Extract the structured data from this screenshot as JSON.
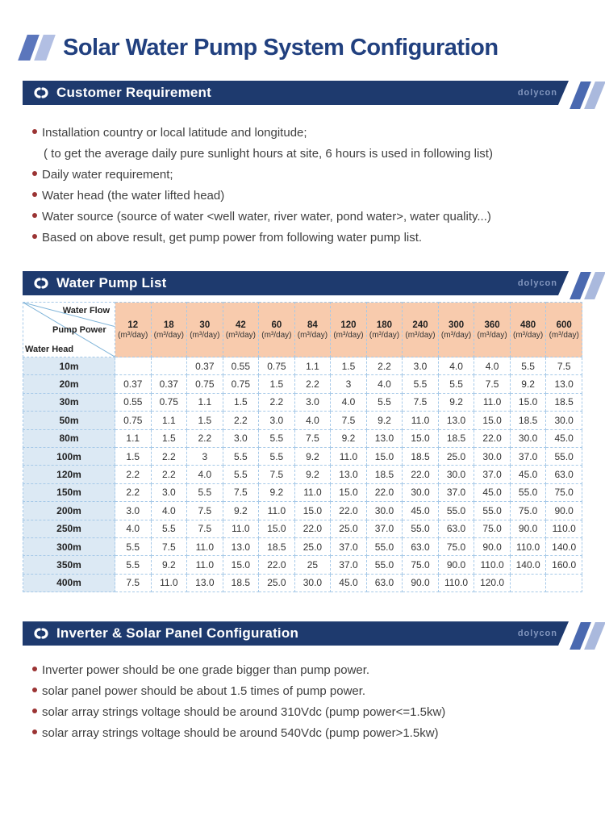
{
  "page_title": "Solar Water Pump System Configuration",
  "brand": "dolycon",
  "colors": {
    "header_bar_navy": "#1e3a6e",
    "title_text_navy": "#21407f",
    "table_header_peach": "#f8cbad",
    "row_header_blue": "#dce9f4",
    "bullet_red": "#9b3434",
    "slash_dark_blue": "#5b76bc",
    "slash_light_blue": "#b2bfe3",
    "dashed_border_blue": "#a6c9e8"
  },
  "sections": [
    {
      "title": "Customer Requirement",
      "bullets": [
        {
          "text": "Installation country or local latitude and longitude;",
          "sub": "( to get the average daily pure sunlight hours at site, 6 hours is used in following list)"
        },
        {
          "text": "Daily water requirement;"
        },
        {
          "text": "Water head (the water lifted head)"
        },
        {
          "text": "Water source (source of water <well water, river water, pond water>, water quality...)"
        },
        {
          "text": "Based on above result, get pump power from following water pump list."
        }
      ]
    },
    {
      "title": "Water Pump List",
      "table": {
        "corner": {
          "water_flow": "Water Flow",
          "pump_power": "Pump Power",
          "water_head": "Water Head"
        },
        "unit": "(m³/day)",
        "columns": [
          "12",
          "18",
          "30",
          "42",
          "60",
          "84",
          "120",
          "180",
          "240",
          "300",
          "360",
          "480",
          "600"
        ],
        "rows": [
          {
            "head": "10m",
            "values": [
              "",
              "",
              "0.37",
              "0.55",
              "0.75",
              "1.1",
              "1.5",
              "2.2",
              "3.0",
              "4.0",
              "4.0",
              "5.5",
              "7.5"
            ]
          },
          {
            "head": "20m",
            "values": [
              "0.37",
              "0.37",
              "0.75",
              "0.75",
              "1.5",
              "2.2",
              "3",
              "4.0",
              "5.5",
              "5.5",
              "7.5",
              "9.2",
              "13.0"
            ]
          },
          {
            "head": "30m",
            "values": [
              "0.55",
              "0.75",
              "1.1",
              "1.5",
              "2.2",
              "3.0",
              "4.0",
              "5.5",
              "7.5",
              "9.2",
              "11.0",
              "15.0",
              "18.5"
            ]
          },
          {
            "head": "50m",
            "values": [
              "0.75",
              "1.1",
              "1.5",
              "2.2",
              "3.0",
              "4.0",
              "7.5",
              "9.2",
              "11.0",
              "13.0",
              "15.0",
              "18.5",
              "30.0"
            ]
          },
          {
            "head": "80m",
            "values": [
              "1.1",
              "1.5",
              "2.2",
              "3.0",
              "5.5",
              "7.5",
              "9.2",
              "13.0",
              "15.0",
              "18.5",
              "22.0",
              "30.0",
              "45.0"
            ]
          },
          {
            "head": "100m",
            "values": [
              "1.5",
              "2.2",
              "3",
              "5.5",
              "5.5",
              "9.2",
              "11.0",
              "15.0",
              "18.5",
              "25.0",
              "30.0",
              "37.0",
              "55.0"
            ]
          },
          {
            "head": "120m",
            "values": [
              "2.2",
              "2.2",
              "4.0",
              "5.5",
              "7.5",
              "9.2",
              "13.0",
              "18.5",
              "22.0",
              "30.0",
              "37.0",
              "45.0",
              "63.0"
            ]
          },
          {
            "head": "150m",
            "values": [
              "2.2",
              "3.0",
              "5.5",
              "7.5",
              "9.2",
              "11.0",
              "15.0",
              "22.0",
              "30.0",
              "37.0",
              "45.0",
              "55.0",
              "75.0"
            ]
          },
          {
            "head": "200m",
            "values": [
              "3.0",
              "4.0",
              "7.5",
              "9.2",
              "11.0",
              "15.0",
              "22.0",
              "30.0",
              "45.0",
              "55.0",
              "55.0",
              "75.0",
              "90.0"
            ]
          },
          {
            "head": "250m",
            "values": [
              "4.0",
              "5.5",
              "7.5",
              "11.0",
              "15.0",
              "22.0",
              "25.0",
              "37.0",
              "55.0",
              "63.0",
              "75.0",
              "90.0",
              "110.0"
            ]
          },
          {
            "head": "300m",
            "values": [
              "5.5",
              "7.5",
              "11.0",
              "13.0",
              "18.5",
              "25.0",
              "37.0",
              "55.0",
              "63.0",
              "75.0",
              "90.0",
              "110.0",
              "140.0"
            ]
          },
          {
            "head": "350m",
            "values": [
              "5.5",
              "9.2",
              "11.0",
              "15.0",
              "22.0",
              "25",
              "37.0",
              "55.0",
              "75.0",
              "90.0",
              "110.0",
              "140.0",
              "160.0"
            ]
          },
          {
            "head": "400m",
            "values": [
              "7.5",
              "11.0",
              "13.0",
              "18.5",
              "25.0",
              "30.0",
              "45.0",
              "63.0",
              "90.0",
              "110.0",
              "120.0",
              "",
              ""
            ]
          }
        ]
      }
    },
    {
      "title": "Inverter & Solar Panel Configuration",
      "bullets": [
        {
          "text": "Inverter power should be one grade bigger than pump power."
        },
        {
          "text": "solar panel power should be about 1.5 times of pump power."
        },
        {
          "text": "solar array strings voltage should be around 310Vdc (pump power<=1.5kw)"
        },
        {
          "text": "solar array strings voltage should be around 540Vdc (pump power>1.5kw)"
        }
      ]
    }
  ]
}
